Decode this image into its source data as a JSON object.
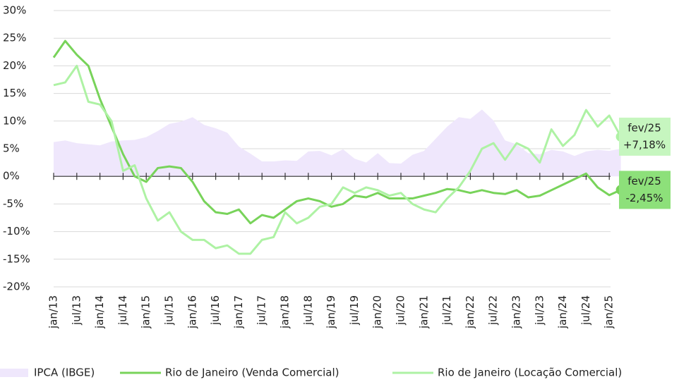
{
  "chart_data": {
    "type": "line",
    "categories": [
      "jan/13",
      null,
      "jul/13",
      null,
      "jan/14",
      null,
      "jul/14",
      null,
      "jan/15",
      null,
      "jul/15",
      null,
      "jan/16",
      null,
      "jul/16",
      null,
      "jan/17",
      null,
      "jul/17",
      null,
      "jan/18",
      null,
      "jul/18",
      null,
      "jan/19",
      null,
      "jul/19",
      null,
      "jan/20",
      null,
      "jul/20",
      null,
      "jan/21",
      null,
      "jul/21",
      null,
      "jan/22",
      null,
      "jul/22",
      null,
      "jan/23",
      null,
      "jul/23",
      null,
      "jan/24",
      null,
      "jul/24",
      null,
      "jan/25",
      null
    ],
    "series": [
      {
        "name": "IPCA (IBGE)",
        "style": "area",
        "color": "#efe7fc",
        "values": [
          6.2,
          6.5,
          6,
          5.8,
          5.6,
          6.3,
          6.5,
          6.6,
          7.1,
          8.2,
          9.5,
          9.9,
          10.7,
          9.3,
          8.7,
          7.9,
          5.4,
          4.1,
          2.7,
          2.7,
          2.9,
          2.8,
          4.5,
          4.6,
          3.8,
          4.9,
          3.2,
          2.5,
          4.2,
          2.4,
          2.3,
          3.9,
          4.6,
          6.8,
          9,
          10.7,
          10.4,
          12.1,
          10.1,
          6.5,
          5.8,
          4.2,
          4,
          4.8,
          4.5,
          3.7,
          4.5,
          4.8,
          4.6,
          5
        ]
      },
      {
        "name": "Rio de Janeiro (Venda Comercial)",
        "style": "line",
        "color": "#78d35a",
        "values": [
          21.5,
          24.5,
          22,
          20,
          14,
          9,
          4,
          0,
          -1,
          1.5,
          1.8,
          1.5,
          -1,
          -4.5,
          -6.5,
          -6.8,
          -6,
          -8.5,
          -7,
          -7.5,
          -6,
          -4.5,
          -4,
          -4.5,
          -5.5,
          -5,
          -3.5,
          -3.8,
          -3,
          -4,
          -4,
          -4,
          -3.5,
          -3,
          -2.3,
          -2.5,
          -3,
          -2.5,
          -3,
          -3.2,
          -2.5,
          -3.8,
          -3.5,
          -2.5,
          -1.5,
          -0.5,
          0.5,
          -2,
          -3.4,
          -2.45
        ],
        "end_label": [
          "fev/25",
          "-2,45%"
        ],
        "box_color": "#8de07a"
      },
      {
        "name": "Rio de Janeiro (Locação Comercial)",
        "style": "line",
        "color": "#aef2a4",
        "values": [
          16.5,
          17,
          20,
          13.5,
          13,
          10,
          1,
          2,
          -4,
          -8,
          -6.5,
          -10,
          -11.5,
          -11.5,
          -13,
          -12.5,
          -14,
          -14,
          -11.5,
          -11,
          -6.5,
          -8.5,
          -7.5,
          -5.5,
          -5,
          -2,
          -3,
          -2,
          -2.5,
          -3.5,
          -3,
          -5,
          -6,
          -6.5,
          -4,
          -2,
          1,
          5,
          6,
          3,
          6,
          5,
          2.5,
          8.5,
          5.5,
          7.5,
          12,
          9,
          11,
          7.18
        ],
        "end_label": [
          "fev/25",
          "+7,18%"
        ],
        "box_color": "#c6f6bf"
      }
    ],
    "ylim": [
      -20,
      30
    ],
    "yticks": [
      {
        "value": -20,
        "label": "-20%"
      },
      {
        "value": -15,
        "label": "-15%"
      },
      {
        "value": -10,
        "label": "-10%"
      },
      {
        "value": -5,
        "label": "-5%"
      },
      {
        "value": 0,
        "label": "0%"
      },
      {
        "value": 5,
        "label": "5%"
      },
      {
        "value": 10,
        "label": "10%"
      },
      {
        "value": 15,
        "label": "15%"
      },
      {
        "value": 20,
        "label": "20%"
      },
      {
        "value": 25,
        "label": "25%"
      },
      {
        "value": 30,
        "label": "30%"
      }
    ],
    "grid": true
  }
}
